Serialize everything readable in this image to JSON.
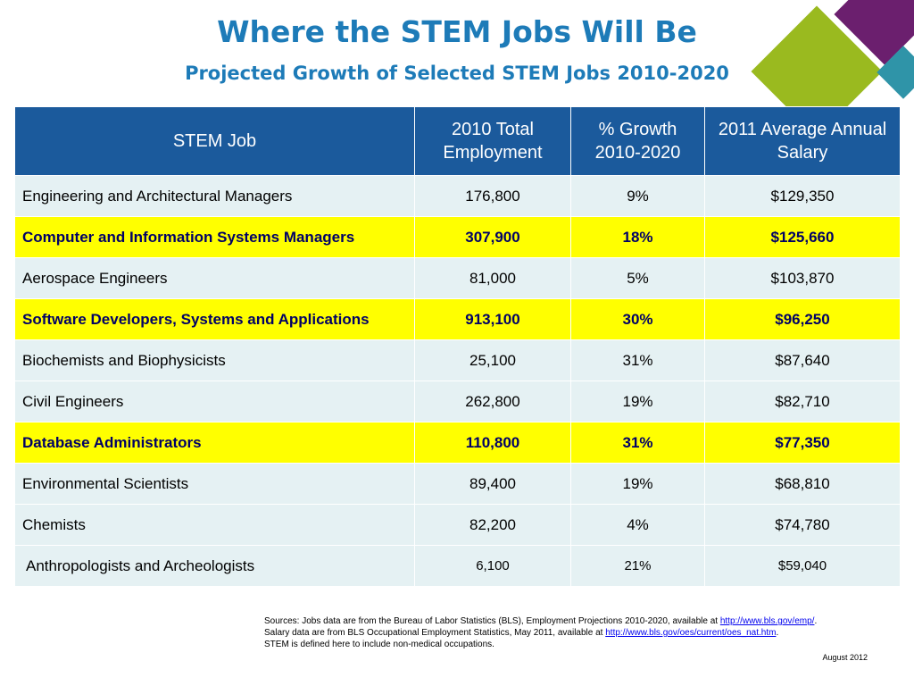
{
  "title": "Where the STEM Jobs Will Be",
  "subtitle": "Projected Growth of Selected STEM Jobs 2010-2020",
  "table": {
    "headers": [
      "STEM Job",
      "2010 Total Employment",
      "% Growth 2010-2020",
      "2011 Average Annual Salary"
    ],
    "rows": [
      {
        "job": "Engineering and Architectural Managers",
        "employment": "176,800",
        "growth": "9%",
        "salary": "$129,350",
        "highlighted": false
      },
      {
        "job": "Computer and Information Systems Managers",
        "employment": "307,900",
        "growth": "18%",
        "salary": "$125,660",
        "highlighted": true
      },
      {
        "job": "Aerospace Engineers",
        "employment": "81,000",
        "growth": "5%",
        "salary": "$103,870",
        "highlighted": false
      },
      {
        "job": "Software Developers, Systems and Applications",
        "employment": "913,100",
        "growth": "30%",
        "salary": "$96,250",
        "highlighted": true
      },
      {
        "job": "Biochemists and Biophysicists",
        "employment": "25,100",
        "growth": "31%",
        "salary": "$87,640",
        "highlighted": false
      },
      {
        "job": "Civil Engineers",
        "employment": "262,800",
        "growth": "19%",
        "salary": "$82,710",
        "highlighted": false
      },
      {
        "job": "Database Administrators",
        "employment": "110,800",
        "growth": "31%",
        "salary": "$77,350",
        "highlighted": true
      },
      {
        "job": "Environmental Scientists",
        "employment": "89,400",
        "growth": "19%",
        "salary": "$68,810",
        "highlighted": false
      },
      {
        "job": "Chemists",
        "employment": "82,200",
        "growth": "4%",
        "salary": "$74,780",
        "highlighted": false
      },
      {
        "job": "Anthropologists and Archeologists",
        "employment": "6,100",
        "growth": "21%",
        "salary": "$59,040",
        "highlighted": false
      }
    ]
  },
  "sources": {
    "line1_prefix": "Sources: Jobs data are from the Bureau of Labor Statistics (BLS), Employment Projections 2010-2020, available at ",
    "line1_link": "http://www.bls.gov/emp/",
    "line1_suffix": ".",
    "line2_prefix": "Salary data are from BLS Occupational Employment Statistics, May 2011, available at ",
    "line2_link": "http://www.bls.gov/oes/current/oes_nat.htm",
    "line2_suffix": ".",
    "line3": "STEM is defined here to include non-medical occupations."
  },
  "date": "August 2012",
  "colors": {
    "title": "#1d7bb8",
    "header_bg": "#1b5a9c",
    "row_bg": "#e5f1f3",
    "highlight_bg": "#ffff00",
    "deco_purple": "#6b1f6e",
    "deco_green": "#9aba1f",
    "deco_teal": "#2f94a8"
  }
}
